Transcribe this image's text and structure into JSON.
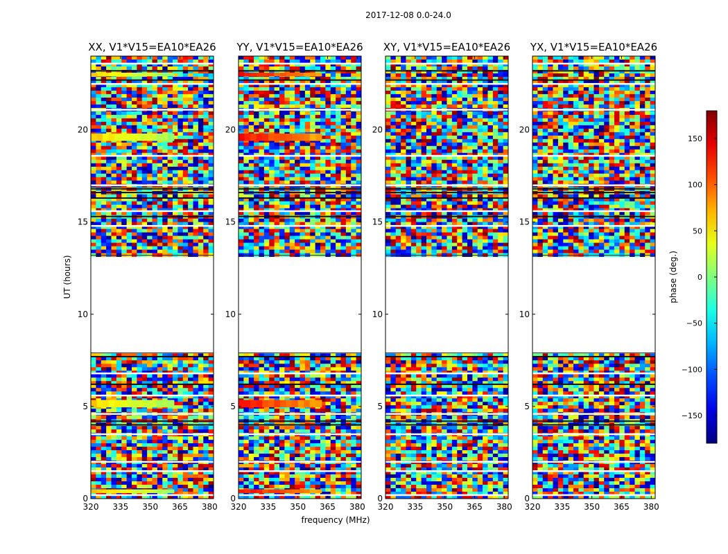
{
  "figure_title": "2017-12-08 0.0-24.0",
  "chart_data": {
    "type": "heatmap",
    "title": "2017-12-08 0.0-24.0",
    "xlabel": "frequency (MHz)",
    "ylabel": "UT (hours)",
    "xlim": [
      320,
      382
    ],
    "ylim": [
      0,
      24
    ],
    "x_ticks": [
      320,
      335,
      350,
      365,
      380
    ],
    "y_ticks": [
      0,
      5,
      10,
      15,
      20
    ],
    "colorbar": {
      "label": "phase (deg.)",
      "range": [
        -180,
        180
      ],
      "ticks": [
        150,
        100,
        50,
        0,
        -50,
        -100,
        -150
      ],
      "tick_labels": [
        "150",
        "100",
        "50",
        "0",
        "−50",
        "−100",
        "−150"
      ],
      "colormap": "jet"
    },
    "panels": [
      {
        "title": "XX, V1*V15=EA10*EA26",
        "polarization": "XX",
        "coherent_band_phase_deg": 60
      },
      {
        "title": "YY, V1*V15=EA10*EA26",
        "polarization": "YY",
        "coherent_band_phase_deg": 130
      },
      {
        "title": "XY, V1*V15=EA10*EA26",
        "polarization": "XY",
        "coherent_band_phase_deg": null
      },
      {
        "title": "YX, V1*V15=EA10*EA26",
        "polarization": "YX",
        "coherent_band_phase_deg": null
      }
    ],
    "data_gap_hours": [
      7.9,
      13.2
    ],
    "coherent_bands_hours": [
      [
        22.9,
        23.1
      ],
      [
        19.4,
        19.8
      ],
      [
        4.95,
        5.35
      ],
      [
        0.3,
        0.5
      ]
    ],
    "blank_rows_hours": [
      23.6,
      22.5,
      21.1,
      18.6,
      17.0,
      15.6,
      14.8,
      6.8,
      5.6,
      4.6,
      3.5,
      2.0,
      1.5,
      0.2
    ],
    "dark_rows_hours": [
      23.2,
      22.7,
      16.8,
      16.6,
      16.3,
      15.3,
      7.7,
      6.2,
      4.2,
      4.0
    ]
  }
}
